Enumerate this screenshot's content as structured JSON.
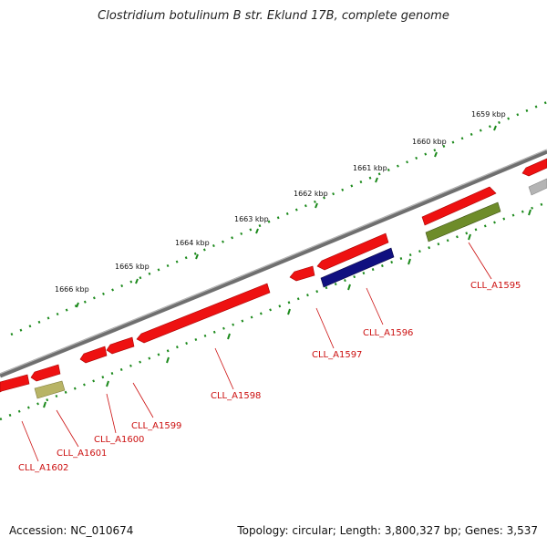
{
  "title": "Clostridium botulinum B str. Eklund 17B, complete genome",
  "accession": "Accession: NC_010674",
  "summary": "Topology: circular; Length: 3,800,327 bp; Genes: 3,537",
  "colors": {
    "backbone": "#7a7a7a",
    "tick": "#1c8a1c",
    "gene_red": "#ee1111",
    "gene_navy": "#101080",
    "gene_olive": "#6e8c2a",
    "gene_khaki": "#b8b466",
    "gene_gray": "#b4b4b4",
    "label": "#cc1010"
  },
  "ruler": [
    {
      "kbp": 1666,
      "label": "1666 kbp"
    },
    {
      "kbp": 1665,
      "label": "1665 kbp"
    },
    {
      "kbp": 1664,
      "label": "1664 kbp"
    },
    {
      "kbp": 1663,
      "label": "1663 kbp"
    },
    {
      "kbp": 1662,
      "label": "1662 kbp"
    },
    {
      "kbp": 1661,
      "label": "1661 kbp"
    },
    {
      "kbp": 1660,
      "label": "1660 kbp"
    },
    {
      "kbp": 1659,
      "label": "1659 kbp"
    }
  ],
  "genes": [
    {
      "name": "CLL_A1602",
      "strand": "reverse",
      "color": "gene_red"
    },
    {
      "name": "CLL_A1601",
      "strand": "reverse",
      "color": "gene_red"
    },
    {
      "name": "CLL_A1600",
      "strand": "reverse",
      "color": "gene_red"
    },
    {
      "name": "CLL_A1599",
      "strand": "reverse",
      "color": "gene_red"
    },
    {
      "name": "CLL_A1598",
      "strand": "reverse",
      "color": "gene_red"
    },
    {
      "name": "CLL_A1597",
      "strand": "reverse",
      "color": "gene_red"
    },
    {
      "name": "CLL_A1596",
      "strand": "reverse",
      "color": "gene_red"
    },
    {
      "name": "CLL_A1595",
      "strand": "forward",
      "color": "gene_red"
    }
  ]
}
